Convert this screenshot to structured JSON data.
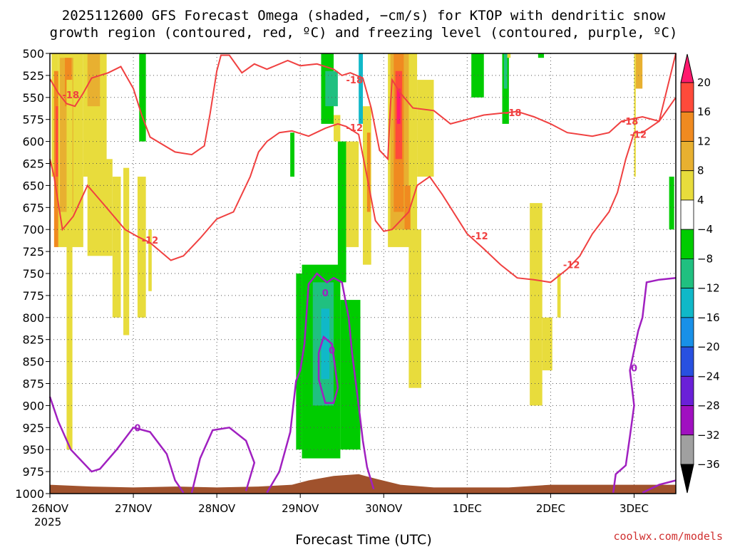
{
  "chart_data": {
    "type": "heatmap",
    "title_lines": [
      "2025112600 GFS Forecast Omega (shaded, −cm/s) for KTOP with dendritic snow",
      "growth region (contoured, red, ºC) and freezing level (contoured, purple, ºC)"
    ],
    "xlabel": "Forecast Time (UTC)",
    "credit": "coolwx.com/models",
    "x_ticks": [
      {
        "label": "26NOV",
        "day": 0
      },
      {
        "label": "27NOV",
        "day": 1
      },
      {
        "label": "28NOV",
        "day": 2
      },
      {
        "label": "29NOV",
        "day": 3
      },
      {
        "label": "30NOV",
        "day": 4
      },
      {
        "label": "1DEC",
        "day": 5
      },
      {
        "label": "2DEC",
        "day": 6
      },
      {
        "label": "3DEC",
        "day": 7
      }
    ],
    "x_year_label": "2025",
    "x_range_days": [
      0,
      7.5
    ],
    "y_range_mb": [
      500,
      1000
    ],
    "y_ticks": [
      500,
      525,
      550,
      575,
      600,
      625,
      650,
      675,
      700,
      725,
      750,
      775,
      800,
      825,
      850,
      875,
      900,
      925,
      950,
      975,
      1000
    ],
    "colorbar": {
      "levels": [
        "20",
        "16",
        "12",
        "8",
        "4",
        "−4",
        "−8",
        "−12",
        "−16",
        "−20",
        "−24",
        "−28",
        "−32",
        "−36"
      ],
      "colors": [
        "#ff1a6e",
        "#ff4a3a",
        "#f08a20",
        "#e8b030",
        "#e8dc3c",
        "#ffffff",
        "#00cc00",
        "#20c080",
        "#10b8c8",
        "#1890e8",
        "#2850e0",
        "#6a20d8",
        "#a010c0",
        "#a0a0a0",
        "#000000"
      ]
    },
    "omega_cells": [
      {
        "t0": 0.02,
        "t1": 0.1,
        "p0": 500,
        "p1": 640,
        "c": "#e8dc3c"
      },
      {
        "t0": 0.05,
        "t1": 0.11,
        "p0": 520,
        "p1": 720,
        "c": "#f08a20"
      },
      {
        "t0": 0.07,
        "t1": 0.1,
        "p0": 560,
        "p1": 640,
        "c": "#ff4a3a"
      },
      {
        "t0": 0.1,
        "t1": 0.4,
        "p0": 500,
        "p1": 720,
        "c": "#e8dc3c"
      },
      {
        "t0": 0.12,
        "t1": 0.28,
        "p0": 505,
        "p1": 680,
        "c": "#e8b030"
      },
      {
        "t0": 0.18,
        "t1": 0.26,
        "p0": 505,
        "p1": 560,
        "c": "#f08a20"
      },
      {
        "t0": 0.2,
        "t1": 0.27,
        "p0": 530,
        "p1": 950,
        "c": "#e8dc3c"
      },
      {
        "t0": 0.4,
        "t1": 0.68,
        "p0": 500,
        "p1": 640,
        "c": "#e8dc3c"
      },
      {
        "t0": 0.45,
        "t1": 0.6,
        "p0": 500,
        "p1": 560,
        "c": "#e8b030"
      },
      {
        "t0": 0.45,
        "t1": 0.75,
        "p0": 620,
        "p1": 730,
        "c": "#e8dc3c"
      },
      {
        "t0": 0.75,
        "t1": 0.85,
        "p0": 640,
        "p1": 800,
        "c": "#e8dc3c"
      },
      {
        "t0": 0.88,
        "t1": 0.95,
        "p0": 630,
        "p1": 820,
        "c": "#e8dc3c"
      },
      {
        "t0": 1.05,
        "t1": 1.15,
        "p0": 640,
        "p1": 800,
        "c": "#e8dc3c"
      },
      {
        "t0": 1.18,
        "t1": 1.22,
        "p0": 700,
        "p1": 770,
        "c": "#e8dc3c"
      },
      {
        "t0": 1.07,
        "t1": 1.15,
        "p0": 500,
        "p1": 600,
        "c": "#00cc00"
      },
      {
        "t0": 3.25,
        "t1": 3.4,
        "p0": 500,
        "p1": 580,
        "c": "#00cc00"
      },
      {
        "t0": 3.3,
        "t1": 3.45,
        "p0": 520,
        "p1": 560,
        "c": "#20c080"
      },
      {
        "t0": 3.45,
        "t1": 3.55,
        "p0": 600,
        "p1": 760,
        "c": "#00cc00"
      },
      {
        "t0": 2.88,
        "t1": 2.93,
        "p0": 590,
        "p1": 640,
        "c": "#00cc00"
      },
      {
        "t0": 2.95,
        "t1": 3.02,
        "p0": 750,
        "p1": 950,
        "c": "#00cc00"
      },
      {
        "t0": 3.02,
        "t1": 3.48,
        "p0": 740,
        "p1": 960,
        "c": "#00cc00"
      },
      {
        "t0": 3.15,
        "t1": 3.4,
        "p0": 760,
        "p1": 900,
        "c": "#20c080"
      },
      {
        "t0": 3.25,
        "t1": 3.35,
        "p0": 790,
        "p1": 870,
        "c": "#10b8c8"
      },
      {
        "t0": 3.48,
        "t1": 3.72,
        "p0": 780,
        "p1": 950,
        "c": "#00cc00"
      },
      {
        "t0": 3.55,
        "t1": 3.7,
        "p0": 600,
        "p1": 720,
        "c": "#e8dc3c"
      },
      {
        "t0": 3.7,
        "t1": 3.75,
        "p0": 500,
        "p1": 580,
        "c": "#10b8c8"
      },
      {
        "t0": 3.75,
        "t1": 3.85,
        "p0": 560,
        "p1": 740,
        "c": "#e8dc3c"
      },
      {
        "t0": 3.8,
        "t1": 3.84,
        "p0": 590,
        "p1": 680,
        "c": "#f08a20"
      },
      {
        "t0": 3.4,
        "t1": 3.48,
        "p0": 570,
        "p1": 600,
        "c": "#e8dc3c"
      },
      {
        "t0": 4.05,
        "t1": 4.4,
        "p0": 500,
        "p1": 720,
        "c": "#e8dc3c"
      },
      {
        "t0": 4.08,
        "t1": 4.3,
        "p0": 500,
        "p1": 700,
        "c": "#e8b030"
      },
      {
        "t0": 4.12,
        "t1": 4.24,
        "p0": 500,
        "p1": 680,
        "c": "#f08a20"
      },
      {
        "t0": 4.14,
        "t1": 4.22,
        "p0": 520,
        "p1": 620,
        "c": "#ff4a3a"
      },
      {
        "t0": 4.16,
        "t1": 4.2,
        "p0": 540,
        "p1": 580,
        "c": "#ff1a6e"
      },
      {
        "t0": 4.4,
        "t1": 4.6,
        "p0": 530,
        "p1": 640,
        "c": "#e8dc3c"
      },
      {
        "t0": 4.3,
        "t1": 4.45,
        "p0": 700,
        "p1": 880,
        "c": "#e8dc3c"
      },
      {
        "t0": 4.25,
        "t1": 4.32,
        "p0": 650,
        "p1": 700,
        "c": "#f08a20"
      },
      {
        "t0": 5.05,
        "t1": 5.2,
        "p0": 500,
        "p1": 550,
        "c": "#00cc00"
      },
      {
        "t0": 5.42,
        "t1": 5.5,
        "p0": 500,
        "p1": 580,
        "c": "#00cc00"
      },
      {
        "t0": 5.44,
        "t1": 5.48,
        "p0": 500,
        "p1": 540,
        "c": "#20c080"
      },
      {
        "t0": 5.48,
        "t1": 5.52,
        "p0": 500,
        "p1": 505,
        "c": "#e8dc3c"
      },
      {
        "t0": 5.85,
        "t1": 5.92,
        "p0": 500,
        "p1": 505,
        "c": "#00cc00"
      },
      {
        "t0": 5.75,
        "t1": 5.9,
        "p0": 670,
        "p1": 900,
        "c": "#e8dc3c"
      },
      {
        "t0": 5.9,
        "t1": 6.02,
        "p0": 800,
        "p1": 860,
        "c": "#e8dc3c"
      },
      {
        "t0": 6.08,
        "t1": 6.12,
        "p0": 750,
        "p1": 800,
        "c": "#e8dc3c"
      },
      {
        "t0": 7.0,
        "t1": 7.02,
        "p0": 500,
        "p1": 640,
        "c": "#e8dc3c"
      },
      {
        "t0": 7.02,
        "t1": 7.1,
        "p0": 500,
        "p1": 540,
        "c": "#e8b030"
      },
      {
        "t0": 7.42,
        "t1": 7.48,
        "p0": 640,
        "p1": 700,
        "c": "#00cc00"
      }
    ],
    "dgz_contours": [
      {
        "label": "-18",
        "color": "#f04040",
        "points": [
          [
            0.0,
            529
          ],
          [
            0.1,
            545
          ],
          [
            0.2,
            557
          ],
          [
            0.3,
            560
          ],
          [
            0.4,
            545
          ],
          [
            0.5,
            528
          ],
          [
            0.7,
            522
          ],
          [
            0.85,
            515
          ],
          [
            1.0,
            540
          ],
          [
            1.1,
            570
          ],
          [
            1.2,
            595
          ],
          [
            1.5,
            612
          ],
          [
            1.7,
            615
          ],
          [
            1.85,
            605
          ],
          [
            1.92,
            568
          ],
          [
            2.0,
            520
          ],
          [
            2.05,
            502
          ],
          [
            2.15,
            502
          ],
          [
            2.3,
            522
          ],
          [
            2.45,
            512
          ],
          [
            2.6,
            518
          ],
          [
            2.85,
            508
          ],
          [
            3.0,
            514
          ],
          [
            3.2,
            512
          ],
          [
            3.4,
            518
          ],
          [
            3.5,
            525
          ],
          [
            3.6,
            522
          ],
          [
            3.75,
            528
          ],
          [
            3.85,
            562
          ],
          [
            3.95,
            610
          ],
          [
            4.05,
            620
          ],
          [
            4.08,
            560
          ],
          [
            4.1,
            530
          ],
          [
            4.2,
            545
          ],
          [
            4.35,
            562
          ],
          [
            4.6,
            565
          ],
          [
            4.8,
            580
          ],
          [
            5.0,
            575
          ],
          [
            5.2,
            570
          ],
          [
            5.4,
            568
          ],
          [
            5.6,
            566
          ],
          [
            5.8,
            572
          ],
          [
            6.0,
            580
          ],
          [
            6.2,
            590
          ],
          [
            6.5,
            594
          ],
          [
            6.7,
            590
          ],
          [
            6.85,
            577
          ],
          [
            7.1,
            572
          ],
          [
            7.3,
            577
          ],
          [
            7.5,
            550
          ]
        ]
      },
      {
        "label": "-12",
        "color": "#f04040",
        "points": [
          [
            0.0,
            620
          ],
          [
            0.05,
            640
          ],
          [
            0.15,
            700
          ],
          [
            0.28,
            685
          ],
          [
            0.45,
            650
          ],
          [
            0.65,
            672
          ],
          [
            0.9,
            700
          ],
          [
            1.05,
            708
          ],
          [
            1.2,
            715
          ],
          [
            1.45,
            735
          ],
          [
            1.6,
            730
          ],
          [
            1.8,
            710
          ],
          [
            2.0,
            688
          ],
          [
            2.2,
            680
          ],
          [
            2.4,
            640
          ],
          [
            2.5,
            612
          ],
          [
            2.6,
            600
          ],
          [
            2.75,
            590
          ],
          [
            2.9,
            588
          ],
          [
            3.1,
            594
          ],
          [
            3.3,
            585
          ],
          [
            3.45,
            580
          ],
          [
            3.55,
            583
          ],
          [
            3.7,
            592
          ],
          [
            3.8,
            640
          ],
          [
            3.9,
            690
          ],
          [
            4.0,
            702
          ],
          [
            4.1,
            700
          ],
          [
            4.3,
            680
          ],
          [
            4.4,
            650
          ],
          [
            4.55,
            640
          ],
          [
            4.7,
            660
          ],
          [
            4.9,
            690
          ],
          [
            5.0,
            705
          ],
          [
            5.2,
            722
          ],
          [
            5.4,
            740
          ],
          [
            5.6,
            755
          ],
          [
            5.8,
            757
          ],
          [
            6.0,
            760
          ],
          [
            6.2,
            745
          ],
          [
            6.35,
            730
          ],
          [
            6.5,
            705
          ],
          [
            6.7,
            680
          ],
          [
            6.8,
            658
          ],
          [
            6.9,
            620
          ],
          [
            7.0,
            590
          ],
          [
            7.1,
            590
          ],
          [
            7.3,
            577
          ],
          [
            7.5,
            500
          ]
        ]
      }
    ],
    "freezing_contours": [
      {
        "label": "0",
        "color": "#a020c0",
        "points": [
          [
            0.0,
            890
          ],
          [
            0.1,
            918
          ],
          [
            0.25,
            950
          ],
          [
            0.5,
            975
          ],
          [
            0.6,
            972
          ],
          [
            0.8,
            950
          ],
          [
            1.0,
            925
          ],
          [
            1.2,
            930
          ],
          [
            1.4,
            955
          ],
          [
            1.5,
            985
          ],
          [
            1.6,
            999
          ]
        ]
      },
      {
        "label": "0",
        "color": "#a020c0",
        "points": [
          [
            1.7,
            999
          ],
          [
            1.8,
            960
          ],
          [
            1.95,
            928
          ],
          [
            2.15,
            925
          ],
          [
            2.35,
            940
          ],
          [
            2.45,
            965
          ],
          [
            2.35,
            997
          ]
        ]
      },
      {
        "label": "0",
        "color": "#a020c0",
        "points": [
          [
            2.6,
            999
          ],
          [
            2.75,
            975
          ],
          [
            2.88,
            930
          ],
          [
            2.95,
            872
          ],
          [
            3.0,
            860
          ],
          [
            3.05,
            830
          ],
          [
            3.1,
            762
          ],
          [
            3.2,
            750
          ],
          [
            3.32,
            760
          ],
          [
            3.4,
            755
          ],
          [
            3.5,
            760
          ],
          [
            3.58,
            800
          ],
          [
            3.62,
            840
          ],
          [
            3.7,
            900
          ],
          [
            3.75,
            940
          ],
          [
            3.8,
            970
          ],
          [
            3.88,
            995
          ]
        ]
      },
      {
        "label": "0",
        "color": "#a020c0",
        "points": [
          [
            3.22,
            840
          ],
          [
            3.28,
            822
          ],
          [
            3.38,
            830
          ],
          [
            3.45,
            880
          ],
          [
            3.4,
            897
          ],
          [
            3.3,
            897
          ],
          [
            3.22,
            870
          ],
          [
            3.22,
            840
          ]
        ]
      },
      {
        "label": "0",
        "color": "#a020c0",
        "points": [
          [
            6.75,
            999
          ],
          [
            6.78,
            978
          ],
          [
            6.9,
            968
          ],
          [
            6.95,
            935
          ],
          [
            7.0,
            900
          ],
          [
            6.95,
            860
          ],
          [
            7.05,
            815
          ],
          [
            7.1,
            800
          ],
          [
            7.15,
            760
          ],
          [
            7.3,
            757
          ],
          [
            7.5,
            755
          ]
        ]
      },
      {
        "label": "0",
        "color": "#a020c0",
        "points": [
          [
            7.1,
            999
          ],
          [
            7.3,
            990
          ],
          [
            7.5,
            985
          ]
        ]
      }
    ],
    "contour_labels": [
      {
        "text": "-18",
        "t": 0.25,
        "p": 547,
        "color": "#f04040"
      },
      {
        "text": "-18",
        "t": 3.65,
        "p": 530,
        "color": "#f04040"
      },
      {
        "text": "-18",
        "t": 5.55,
        "p": 567,
        "color": "#f04040"
      },
      {
        "text": "-18",
        "t": 6.95,
        "p": 577,
        "color": "#f04040"
      },
      {
        "text": "-12",
        "t": 3.65,
        "p": 584,
        "color": "#f04040"
      },
      {
        "text": "-12",
        "t": 1.2,
        "p": 712,
        "color": "#f04040"
      },
      {
        "text": "-12",
        "t": 5.15,
        "p": 707,
        "color": "#f04040"
      },
      {
        "text": "-12",
        "t": 6.25,
        "p": 740,
        "color": "#f04040"
      },
      {
        "text": "-12",
        "t": 7.05,
        "p": 592,
        "color": "#f04040"
      },
      {
        "text": "0",
        "t": 1.05,
        "p": 925,
        "color": "#a020c0"
      },
      {
        "text": "0",
        "t": 3.3,
        "p": 772,
        "color": "#a020c0"
      },
      {
        "text": "0",
        "t": 3.38,
        "p": 837,
        "color": "#a020c0"
      },
      {
        "text": "0",
        "t": 7.0,
        "p": 857,
        "color": "#a020c0"
      }
    ],
    "terrain_mb": [
      [
        0.0,
        990
      ],
      [
        0.5,
        992
      ],
      [
        1.0,
        993
      ],
      [
        1.5,
        992
      ],
      [
        2.0,
        993
      ],
      [
        2.5,
        992
      ],
      [
        2.9,
        990
      ],
      [
        3.1,
        985
      ],
      [
        3.4,
        980
      ],
      [
        3.7,
        978
      ],
      [
        3.9,
        983
      ],
      [
        4.2,
        990
      ],
      [
        4.6,
        993
      ],
      [
        5.0,
        993
      ],
      [
        5.5,
        993
      ],
      [
        6.0,
        990
      ],
      [
        6.5,
        990
      ],
      [
        7.0,
        990
      ],
      [
        7.5,
        990
      ]
    ],
    "terrain_color": "#a0522d"
  }
}
